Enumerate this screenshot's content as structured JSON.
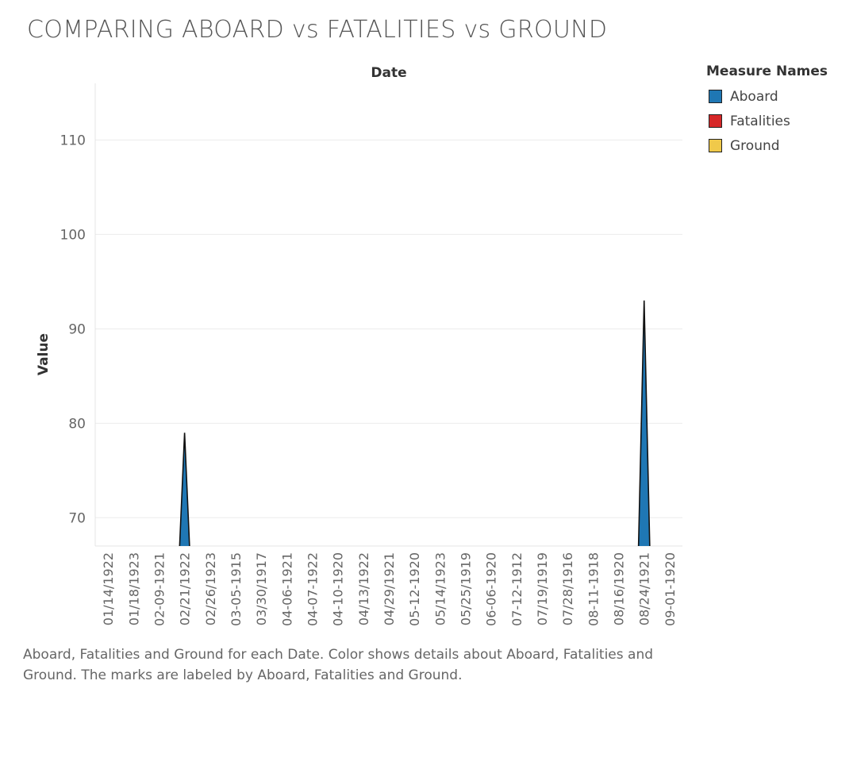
{
  "title": "COMPARING ABOARD vs FATALITIES vs GROUND",
  "caption": "Aboard, Fatalities and Ground for each Date.  Color shows details about Aboard, Fatalities and Ground.  The marks are labeled by Aboard, Fatalities and Ground.",
  "legend": {
    "title": "Measure Names",
    "items": [
      {
        "label": "Aboard",
        "color": "#1f77b4"
      },
      {
        "label": "Fatalities",
        "color": "#d62728"
      },
      {
        "label": "Ground",
        "color": "#f0c94a"
      }
    ]
  },
  "chart_data": {
    "type": "area",
    "title": "COMPARING ABOARD vs FATALITIES vs GROUND",
    "xlabel": "Date",
    "ylabel": "Value",
    "ylim": [
      67,
      116
    ],
    "yticks": [
      70,
      80,
      90,
      100,
      110
    ],
    "grid": true,
    "legend_position": "top-right",
    "categories": [
      "01/14/1922",
      "01/18/1923",
      "02-09-1921",
      "02/21/1922",
      "02/26/1923",
      "03-05-1915",
      "03/30/1917",
      "04-06-1921",
      "04-07-1922",
      "04-10-1920",
      "04/13/1922",
      "04/29/1921",
      "05-12-1920",
      "05/14/1923",
      "05/25/1919",
      "06-06-1920",
      "07-12-1912",
      "07/19/1919",
      "07/28/1916",
      "08-11-1918",
      "08/16/1920",
      "08/24/1921",
      "09-01-1920"
    ],
    "series": [
      {
        "name": "Aboard",
        "color": "#1f77b4",
        "values": [
          null,
          null,
          null,
          79,
          null,
          null,
          null,
          null,
          null,
          null,
          null,
          null,
          null,
          null,
          null,
          null,
          null,
          null,
          null,
          null,
          null,
          93,
          null
        ]
      }
    ]
  }
}
